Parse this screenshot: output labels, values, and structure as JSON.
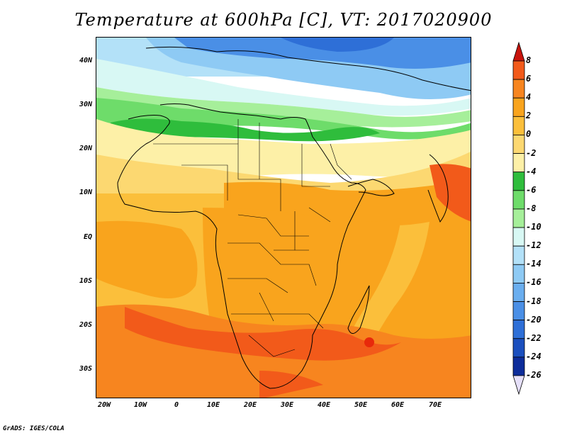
{
  "title": "Temperature at 600hPa [C], VT: 2017020900",
  "footer": "GrADS: IGES/COLA",
  "map": {
    "region": "Africa",
    "lon_range": [
      -23,
      80
    ],
    "lat_range": [
      -36,
      45
    ],
    "y_ticks": [
      "40N",
      "30N",
      "20N",
      "10N",
      "EQ",
      "10S",
      "20S",
      "30S"
    ],
    "x_ticks": [
      "20W",
      "10W",
      "0",
      "10E",
      "20E",
      "30E",
      "40E",
      "50E",
      "60E",
      "70E"
    ]
  },
  "colorbar": {
    "labels": [
      "8",
      "6",
      "4",
      "2",
      "0",
      "-2",
      "-4",
      "-6",
      "-8",
      "-10",
      "-12",
      "-14",
      "-16",
      "-18",
      "-20",
      "-22",
      "-24",
      "-26"
    ],
    "colors": [
      "#e8290b",
      "#f25a1a",
      "#f7851f",
      "#f9a41d",
      "#fbbf3b",
      "#fcd871",
      "#fdf0a7",
      "#2fbd3c",
      "#6edc6a",
      "#a6ef9a",
      "#d8f8f4",
      "#b3e1f8",
      "#8ecaf4",
      "#6aaeef",
      "#4a8fe6",
      "#2e6fd7",
      "#1b4fbe",
      "#0d2c9a",
      "#06126e"
    ],
    "arrow_top_color": "#c8140c",
    "arrow_bottom_color": "#e6e0fa"
  }
}
